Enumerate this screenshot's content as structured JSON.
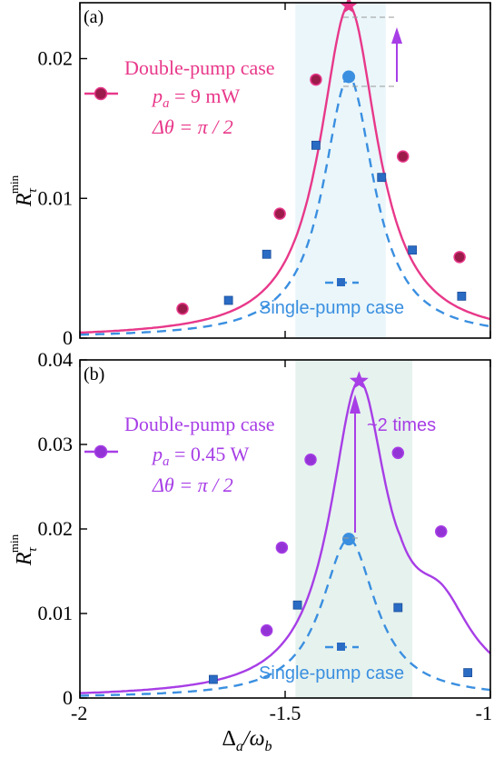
{
  "chart_data": [
    {
      "panel": "(a)",
      "type": "line",
      "xlim": [
        -2,
        -1
      ],
      "ylim": [
        0,
        0.024
      ],
      "yticks": [
        0,
        0.01,
        0.02
      ],
      "ytick_labels": [
        "0",
        "0.01",
        "0.02"
      ],
      "ylabel_main": "R",
      "ylabel_sub": "τ",
      "ylabel_sup": "min",
      "shaded_region": [
        -1.475,
        -1.255
      ],
      "shade_color": "#eaf6fa",
      "series": [
        {
          "name": "Double-pump case",
          "color": "#e8388a",
          "marker_color": "#9b1b4a",
          "style": "solid",
          "curve": {
            "peak_x": -1.345,
            "peak_y": 0.0238,
            "half_width": 0.085
          },
          "markers_x": [
            -1.75,
            -1.513,
            -1.425,
            -1.213,
            -1.075
          ],
          "markers_y": [
            0.0021,
            0.0089,
            0.0185,
            0.013,
            0.0058
          ],
          "peak_marker": "star"
        },
        {
          "name": "Single-pump case",
          "color": "#3a8fe0",
          "marker_color": "#2a6bc4",
          "style": "dashed",
          "curve": {
            "peak_x": -1.345,
            "peak_y": 0.0187,
            "half_width": 0.075
          },
          "markers_x": [
            -1.638,
            -1.545,
            -1.425,
            -1.265,
            -1.19,
            -1.07
          ],
          "markers_y": [
            0.0027,
            0.006,
            0.0138,
            0.0115,
            0.0063,
            0.003
          ],
          "peak_marker": "circle"
        }
      ],
      "legend": {
        "double_label": "Double-pump case",
        "pa_label": "p",
        "pa_sub": "a",
        "pa_value": " = 9 mW",
        "dtheta_label": "Δθ = π / 2",
        "single_label": "Single-pump case"
      },
      "annotation": ""
    },
    {
      "panel": "(b)",
      "type": "line",
      "xlim": [
        -2,
        -1
      ],
      "ylim": [
        0,
        0.04
      ],
      "yticks": [
        0,
        0.01,
        0.02,
        0.03,
        0.04
      ],
      "ytick_labels": [
        "0",
        "0.01",
        "0.02",
        "0.03",
        "0.04"
      ],
      "ylabel_main": "R",
      "ylabel_sub": "τ",
      "ylabel_sup": "min",
      "shaded_region": [
        -1.475,
        -1.19
      ],
      "shade_color": "#e6f2ee",
      "series": [
        {
          "name": "Double-pump case",
          "color": "#a73ee6",
          "marker_color": "#9333d6",
          "style": "solid",
          "curve": {
            "peak_x": -1.32,
            "peak_y": 0.0375,
            "half_width": 0.085,
            "tail": 0.0
          },
          "markers_x": [
            -1.545,
            -1.508,
            -1.438,
            -1.225,
            -1.12
          ],
          "markers_y": [
            0.008,
            0.0178,
            0.0282,
            0.029,
            0.0197
          ],
          "peak_marker": "star"
        },
        {
          "name": "Single-pump case",
          "color": "#3a8fe0",
          "marker_color": "#2a6bc4",
          "style": "dashed",
          "curve": {
            "peak_x": -1.345,
            "peak_y": 0.0188,
            "half_width": 0.08
          },
          "markers_x": [
            -1.675,
            -1.47,
            -1.225,
            -1.055
          ],
          "markers_y": [
            0.0022,
            0.011,
            0.0107,
            0.003
          ],
          "peak_marker": "circle"
        }
      ],
      "legend": {
        "double_label": "Double-pump case",
        "pa_label": "p",
        "pa_sub": "a",
        "pa_value": " = 0.45 W",
        "dtheta_label": "Δθ = π / 2",
        "single_label": "Single-pump case"
      },
      "annotation": "~2 times"
    }
  ],
  "x_axis": {
    "ticks": [
      -2,
      -1.5,
      -1
    ],
    "tick_labels": [
      "-2",
      "-1.5",
      "-1"
    ],
    "label_main": "Δ",
    "label_sub_a": "a",
    "label_mid": "/ω",
    "label_sub_b": "b"
  }
}
